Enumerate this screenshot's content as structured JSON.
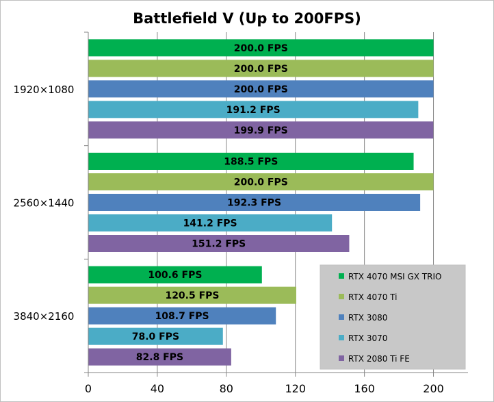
{
  "chart_data": {
    "type": "bar",
    "orientation": "horizontal",
    "title": "Battlefield V (Up to 200FPS)",
    "categories": [
      "1920×1080",
      "2560×1440",
      "3840×2160"
    ],
    "series": [
      {
        "name": "RTX 4070 MSI GX TRIO",
        "color": "#00b050",
        "values": [
          200.0,
          188.5,
          100.6
        ],
        "labels": [
          "200.0 FPS",
          "188.5 FPS",
          "100.6 FPS"
        ]
      },
      {
        "name": "RTX 4070 Ti",
        "color": "#9bbb59",
        "values": [
          200.0,
          200.0,
          120.5
        ],
        "labels": [
          "200.0 FPS",
          "200.0 FPS",
          "120.5 FPS"
        ]
      },
      {
        "name": "RTX 3080",
        "color": "#4f81bd",
        "values": [
          200.0,
          192.3,
          108.7
        ],
        "labels": [
          "200.0 FPS",
          "192.3 FPS",
          "108.7 FPS"
        ]
      },
      {
        "name": "RTX 3070",
        "color": "#4bacc6",
        "values": [
          191.2,
          141.2,
          78.0
        ],
        "labels": [
          "191.2 FPS",
          "141.2 FPS",
          "78.0 FPS"
        ]
      },
      {
        "name": "RTX 2080 Ti FE",
        "color": "#8064a2",
        "values": [
          199.9,
          151.2,
          82.8
        ],
        "labels": [
          "199.9 FPS",
          "151.2 FPS",
          "82.8 FPS"
        ]
      }
    ],
    "xlim": [
      0,
      220
    ],
    "xticks": [
      0,
      40,
      80,
      120,
      160,
      200
    ],
    "xtick_labels": [
      "0",
      "40",
      "80",
      "120",
      "160",
      "200"
    ],
    "grid": true,
    "legend_position": "bottom-right"
  }
}
